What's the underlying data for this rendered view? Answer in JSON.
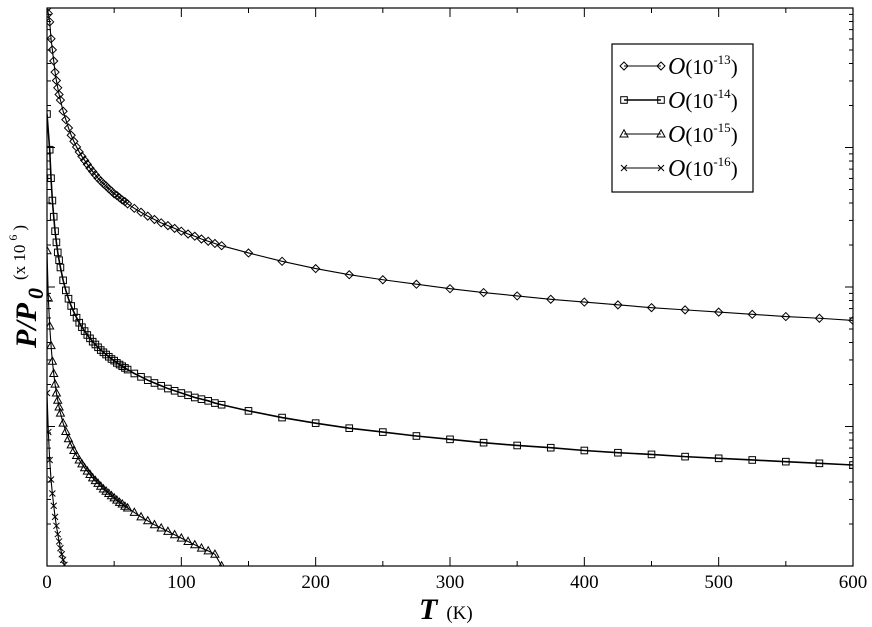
{
  "chart_data": {
    "type": "line",
    "xlabel": {
      "main": "T",
      "unit": "(K)"
    },
    "ylabel": {
      "main": "P/P",
      "subscript": "0",
      "unit": "(x 10",
      "unit_exp": "6",
      "unit_close": ")"
    },
    "xlim": [
      0,
      600
    ],
    "ylim": [
      0,
      1
    ],
    "x_tick_labels": [
      "0",
      "100",
      "200",
      "300",
      "400",
      "500",
      "600"
    ],
    "y_tick_labels": [],
    "grid": false,
    "legend_position": "top-right",
    "series": [
      {
        "name": "O(10-13)",
        "name_base": "O",
        "name_exp": "-13",
        "marker": "diamond",
        "x": [
          0,
          1,
          2,
          3,
          4,
          5,
          6,
          7,
          8,
          9,
          10,
          12,
          14,
          16,
          18,
          20,
          22,
          24,
          26,
          28,
          30,
          32,
          34,
          36,
          38,
          40,
          42,
          44,
          46,
          48,
          50,
          52,
          54,
          56,
          58,
          60,
          65,
          70,
          75,
          80,
          85,
          90,
          95,
          100,
          105,
          110,
          115,
          120,
          125,
          130,
          150,
          175,
          200,
          225,
          250,
          275,
          300,
          325,
          350,
          375,
          400,
          425,
          450,
          475,
          500,
          525,
          550,
          575,
          600
        ],
        "y": [
          1.0,
          0.99,
          0.975,
          0.945,
          0.925,
          0.905,
          0.885,
          0.87,
          0.857,
          0.845,
          0.835,
          0.815,
          0.8,
          0.785,
          0.772,
          0.761,
          0.751,
          0.742,
          0.734,
          0.727,
          0.72,
          0.713,
          0.707,
          0.701,
          0.695,
          0.69,
          0.685,
          0.681,
          0.676,
          0.672,
          0.667,
          0.664,
          0.66,
          0.656,
          0.653,
          0.649,
          0.641,
          0.634,
          0.627,
          0.621,
          0.615,
          0.61,
          0.605,
          0.6,
          0.595,
          0.591,
          0.586,
          0.582,
          0.578,
          0.574,
          0.561,
          0.546,
          0.533,
          0.522,
          0.513,
          0.505,
          0.497,
          0.49,
          0.484,
          0.478,
          0.473,
          0.468,
          0.463,
          0.459,
          0.455,
          0.451,
          0.447,
          0.444,
          0.44
        ]
      },
      {
        "name": "O(10-14)",
        "name_base": "O",
        "name_exp": "-14",
        "marker": "square",
        "x": [
          0,
          2,
          3,
          4,
          5,
          6,
          7,
          8,
          9,
          10,
          12,
          14,
          16,
          18,
          20,
          22,
          24,
          26,
          28,
          30,
          32,
          34,
          36,
          38,
          40,
          42,
          44,
          46,
          48,
          50,
          52,
          54,
          56,
          58,
          60,
          65,
          70,
          75,
          80,
          85,
          90,
          95,
          100,
          105,
          110,
          115,
          120,
          125,
          130,
          150,
          175,
          200,
          225,
          250,
          275,
          300,
          325,
          350,
          375,
          400,
          425,
          450,
          475,
          500,
          525,
          550,
          575,
          600
        ],
        "y": [
          0.81,
          0.746,
          0.695,
          0.655,
          0.626,
          0.6,
          0.58,
          0.562,
          0.548,
          0.535,
          0.512,
          0.494,
          0.479,
          0.466,
          0.455,
          0.445,
          0.436,
          0.428,
          0.421,
          0.414,
          0.408,
          0.402,
          0.397,
          0.392,
          0.387,
          0.383,
          0.379,
          0.375,
          0.371,
          0.368,
          0.364,
          0.361,
          0.358,
          0.355,
          0.352,
          0.345,
          0.339,
          0.333,
          0.328,
          0.323,
          0.318,
          0.314,
          0.31,
          0.306,
          0.302,
          0.299,
          0.296,
          0.292,
          0.289,
          0.278,
          0.266,
          0.256,
          0.247,
          0.24,
          0.233,
          0.227,
          0.221,
          0.216,
          0.212,
          0.207,
          0.203,
          0.2,
          0.196,
          0.193,
          0.19,
          0.187,
          0.184,
          0.181
        ]
      },
      {
        "name": "O(10-15)",
        "name_base": "O",
        "name_exp": "-15",
        "marker": "triangle",
        "x": [
          0,
          1,
          2,
          3,
          4,
          5,
          6,
          7,
          8,
          9,
          10,
          12,
          14,
          16,
          18,
          20,
          22,
          24,
          26,
          28,
          30,
          32,
          34,
          36,
          38,
          40,
          42,
          44,
          46,
          48,
          50,
          52,
          54,
          56,
          58,
          60,
          65,
          70,
          75,
          80,
          85,
          90,
          95,
          100,
          105,
          110,
          115,
          120,
          125,
          130
        ],
        "y": [
          0.565,
          0.48,
          0.43,
          0.395,
          0.367,
          0.345,
          0.326,
          0.31,
          0.297,
          0.285,
          0.274,
          0.256,
          0.241,
          0.228,
          0.217,
          0.207,
          0.198,
          0.19,
          0.183,
          0.176,
          0.17,
          0.164,
          0.158,
          0.153,
          0.148,
          0.143,
          0.138,
          0.134,
          0.13,
          0.126,
          0.122,
          0.118,
          0.114,
          0.111,
          0.107,
          0.104,
          0.096,
          0.088,
          0.081,
          0.074,
          0.068,
          0.062,
          0.056,
          0.05,
          0.044,
          0.038,
          0.032,
          0.027,
          0.021,
          0.0
        ]
      },
      {
        "name": "O(10-16)",
        "name_base": "O",
        "name_exp": "-16",
        "marker": "x",
        "x": [
          0,
          1,
          2,
          3,
          4,
          5,
          6,
          7,
          8,
          9,
          10,
          11,
          12,
          13,
          14
        ],
        "y": [
          0.31,
          0.24,
          0.19,
          0.155,
          0.13,
          0.108,
          0.088,
          0.072,
          0.057,
          0.044,
          0.032,
          0.021,
          0.011,
          0.002,
          -0.01
        ]
      }
    ]
  }
}
